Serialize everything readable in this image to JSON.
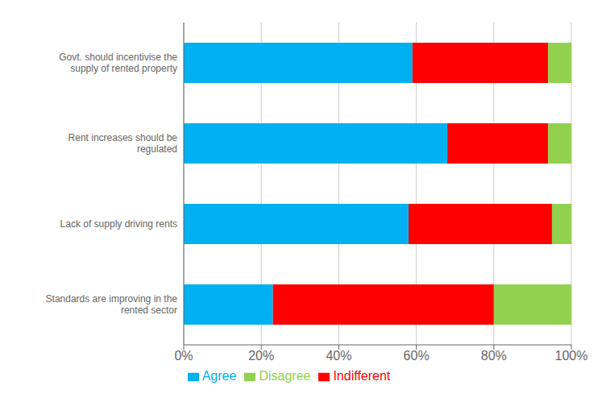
{
  "chart_data": {
    "type": "bar",
    "orientation": "horizontal",
    "stacked": true,
    "categories": [
      "Standards are improving in the\nrented sector",
      "Lack of supply driving rents",
      "Rent increases should be\nregulated",
      "Govt. should incentivise the\nsupply of rented property"
    ],
    "series": [
      {
        "name": "Agree",
        "color": "#00B0F0",
        "values": [
          23,
          58,
          68,
          59
        ]
      },
      {
        "name": "Indifferent",
        "color": "#FF0000",
        "values": [
          57,
          37,
          26,
          35
        ]
      },
      {
        "name": "Disagree",
        "color": "#92D050",
        "values": [
          20,
          5,
          6,
          6
        ]
      }
    ],
    "xlim": [
      0,
      100
    ],
    "xticks": [
      {
        "value": 0,
        "label": "0%"
      },
      {
        "value": 20,
        "label": "20%"
      },
      {
        "value": 40,
        "label": "40%"
      },
      {
        "value": 60,
        "label": "60%"
      },
      {
        "value": 80,
        "label": "80%"
      },
      {
        "value": 100,
        "label": "100%"
      }
    ],
    "grid": true,
    "legend": "bottom"
  }
}
